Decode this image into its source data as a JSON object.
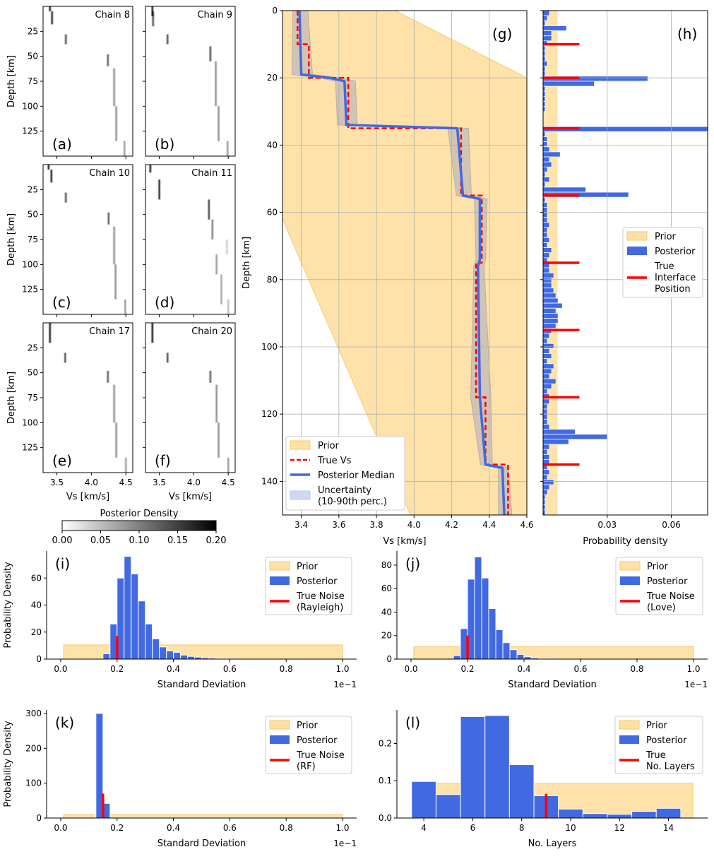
{
  "colors": {
    "prior": "#FFE1A6",
    "prior_edge": "#F5C96B",
    "posterior": "#4169E1",
    "true": "#FF0000",
    "band": "#C9BFB6"
  },
  "chart_data": [
    {
      "id": "chains",
      "type": "heatmap",
      "panels": [
        {
          "label": "(a)",
          "title": "Chain 8"
        },
        {
          "label": "(b)",
          "title": "Chain 9"
        },
        {
          "label": "(c)",
          "title": "Chain 10"
        },
        {
          "label": "(d)",
          "title": "Chain 11"
        },
        {
          "label": "(e)",
          "title": "Chain 17"
        },
        {
          "label": "(f)",
          "title": "Chain 20"
        }
      ],
      "xlabel": "Vs [km/s]",
      "ylabel": "Depth [km]",
      "xlim": [
        3.3,
        4.6
      ],
      "ylim": [
        0,
        150
      ],
      "xticks": [
        "3.5",
        "4.0",
        "4.5"
      ],
      "yticks": [
        "25",
        "50",
        "75",
        "100",
        "125"
      ],
      "colorbar": {
        "title": "Posterior Density",
        "range": [
          0,
          0.2
        ],
        "ticks": [
          "0.00",
          "0.05",
          "0.10",
          "0.15",
          "0.20"
        ]
      }
    },
    {
      "id": "g",
      "type": "line",
      "label": "(g)",
      "xlabel": "Vs [km/s]",
      "ylabel": "Depth [km]",
      "xlim": [
        3.3,
        4.6
      ],
      "ylim": [
        150,
        0
      ],
      "xticks": [
        "3.4",
        "3.6",
        "3.8",
        "4.0",
        "4.2",
        "4.4",
        "4.6"
      ],
      "yticks": [
        "0",
        "20",
        "40",
        "60",
        "80",
        "100",
        "120",
        "140"
      ],
      "true_vs": {
        "depth": [
          0,
          10,
          10,
          20,
          20,
          35,
          35,
          55,
          55,
          75,
          75,
          115,
          115,
          135,
          135,
          150
        ],
        "vs": [
          3.38,
          3.38,
          3.44,
          3.44,
          3.65,
          3.65,
          4.25,
          4.25,
          4.36,
          4.36,
          4.33,
          4.33,
          4.38,
          4.38,
          4.5,
          4.5
        ]
      },
      "median": {
        "depth": [
          0,
          19,
          20,
          21,
          34,
          35,
          55,
          56,
          74,
          76,
          115,
          135,
          136,
          150
        ],
        "vs": [
          3.39,
          3.4,
          3.55,
          3.63,
          3.64,
          4.23,
          4.26,
          4.35,
          4.35,
          4.34,
          4.35,
          4.38,
          4.47,
          4.48
        ]
      },
      "legend": [
        "Prior",
        "True Vs",
        "Posterior Median",
        "Uncertainty\n(10-90th perc.)"
      ]
    },
    {
      "id": "h",
      "type": "bar",
      "label": "(h)",
      "xlabel": "Probability density",
      "xticks": [
        "0.03",
        "0.06"
      ],
      "xlim": [
        0,
        0.077
      ],
      "prior_value": 0.0068,
      "depth_bin_width": 1.5,
      "posterior": [
        0.003,
        0.002,
        0.001,
        0.011,
        0.004,
        0.004,
        0.002,
        0.001,
        0.001,
        0.001,
        0.002,
        0.001,
        0.001,
        0.049,
        0.024,
        0.001,
        0.001,
        0.001,
        0.001,
        0.001,
        0,
        0,
        0,
        0.077,
        0.001,
        0.002,
        0.002,
        0.003,
        0.008,
        0.003,
        0.004,
        0.002,
        0.001,
        0.003,
        0.001,
        0.02,
        0.04,
        0.001,
        0.002,
        0.002,
        0.002,
        0.002,
        0.003,
        0.002,
        0.002,
        0.003,
        0.002,
        0.004,
        0.003,
        0.002,
        0.003,
        0.003,
        0.005,
        0.004,
        0.004,
        0.005,
        0.006,
        0.007,
        0.009,
        0.006,
        0.007,
        0.007,
        0.006,
        0.004,
        0.003,
        0.002,
        0.005,
        0.003,
        0.004,
        0.002,
        0.005,
        0.004,
        0.003,
        0.006,
        0.004,
        0.002,
        0.003,
        0.003,
        0.002,
        0.002,
        0.002,
        0.002,
        0.003,
        0.015,
        0.03,
        0.012,
        0.003,
        0.002,
        0.003,
        0.003,
        0.002,
        0.003,
        0.002,
        0.005,
        0.003,
        0.002,
        0.001,
        0.001,
        0.001,
        0.001
      ],
      "true_interfaces": [
        10,
        20,
        35,
        55,
        75,
        95,
        115,
        135
      ],
      "true_value": 0.017,
      "legend": [
        "Prior",
        "Posterior",
        "True\nInterface\nPosition"
      ]
    },
    {
      "id": "i",
      "type": "bar",
      "label": "(i)",
      "xlabel": "Standard Deviation",
      "ylabel": "Probability Density",
      "offset": "1e−1",
      "xlim": [
        -0.05,
        1.05
      ],
      "ylim": [
        0,
        80
      ],
      "xticks": [
        "0.0",
        "0.2",
        "0.4",
        "0.6",
        "0.8",
        "1.0"
      ],
      "yticks": [
        "0",
        "20",
        "40",
        "60"
      ],
      "prior": {
        "x": [
          0.01,
          1.0
        ],
        "value": 10.5
      },
      "bin_width": 0.025,
      "bin_start": 0.15,
      "posterior": [
        4,
        26,
        60,
        76,
        63,
        43,
        26,
        15,
        9,
        6,
        5,
        3,
        2,
        1.5,
        1,
        0.7,
        0.5,
        0.3,
        0.2,
        0.1
      ],
      "true_x": 0.2,
      "true_value": 17,
      "legend": [
        "Prior",
        "Posterior",
        "True Noise\n(Rayleigh)"
      ]
    },
    {
      "id": "j",
      "type": "bar",
      "label": "(j)",
      "xlabel": "Standard Deviation",
      "offset": "1e−1",
      "xlim": [
        -0.05,
        1.05
      ],
      "ylim": [
        0,
        92
      ],
      "xticks": [
        "0.0",
        "0.2",
        "0.4",
        "0.6",
        "0.8",
        "1.0"
      ],
      "yticks": [
        "0",
        "20",
        "40",
        "60",
        "80"
      ],
      "prior": {
        "x": [
          0.01,
          1.0
        ],
        "value": 10.5
      },
      "bin_width": 0.025,
      "bin_start": 0.15,
      "posterior": [
        3,
        26,
        68,
        87,
        69,
        43,
        25,
        14,
        8,
        4,
        2,
        1,
        0.6,
        0.3,
        0.2
      ],
      "true_x": 0.2,
      "true_value": 20,
      "legend": [
        "Prior",
        "Posterior",
        "True Noise\n(Love)"
      ]
    },
    {
      "id": "k",
      "type": "bar",
      "label": "(k)",
      "xlabel": "Standard Deviation",
      "ylabel": "Probability Density",
      "offset": "1e−1",
      "xlim": [
        -0.05,
        1.05
      ],
      "ylim": [
        0,
        310
      ],
      "xticks": [
        "0.0",
        "0.2",
        "0.4",
        "0.6",
        "0.8",
        "1.0"
      ],
      "yticks": [
        "0",
        "100",
        "200",
        "300"
      ],
      "prior": {
        "x": [
          0.01,
          1.0
        ],
        "value": 10
      },
      "bin_width": 0.025,
      "bin_start": 0.125,
      "posterior": [
        300,
        42
      ],
      "true_x": 0.15,
      "true_value": 70,
      "legend": [
        "Prior",
        "Posterior",
        "True Noise\n(RF)"
      ]
    },
    {
      "id": "l",
      "type": "bar",
      "label": "(l)",
      "xlabel": "No. Layers",
      "xlim": [
        2.9,
        15.6
      ],
      "ylim": [
        0,
        0.29
      ],
      "xticks": [
        "4",
        "6",
        "8",
        "10",
        "12",
        "14"
      ],
      "yticks": [
        "0.0",
        "0.1",
        "0.2"
      ],
      "prior": {
        "x": [
          3.5,
          15
        ],
        "value": 0.093
      },
      "bin_width": 1,
      "bin_start": 3.5,
      "posterior": [
        0.098,
        0.063,
        0.272,
        0.275,
        0.143,
        0.06,
        0.024,
        0.012,
        0.01,
        0.018,
        0.026
      ],
      "true_x": 9,
      "true_value": 0.065,
      "legend": [
        "Prior",
        "Posterior",
        "True\nNo. Layers"
      ]
    }
  ]
}
